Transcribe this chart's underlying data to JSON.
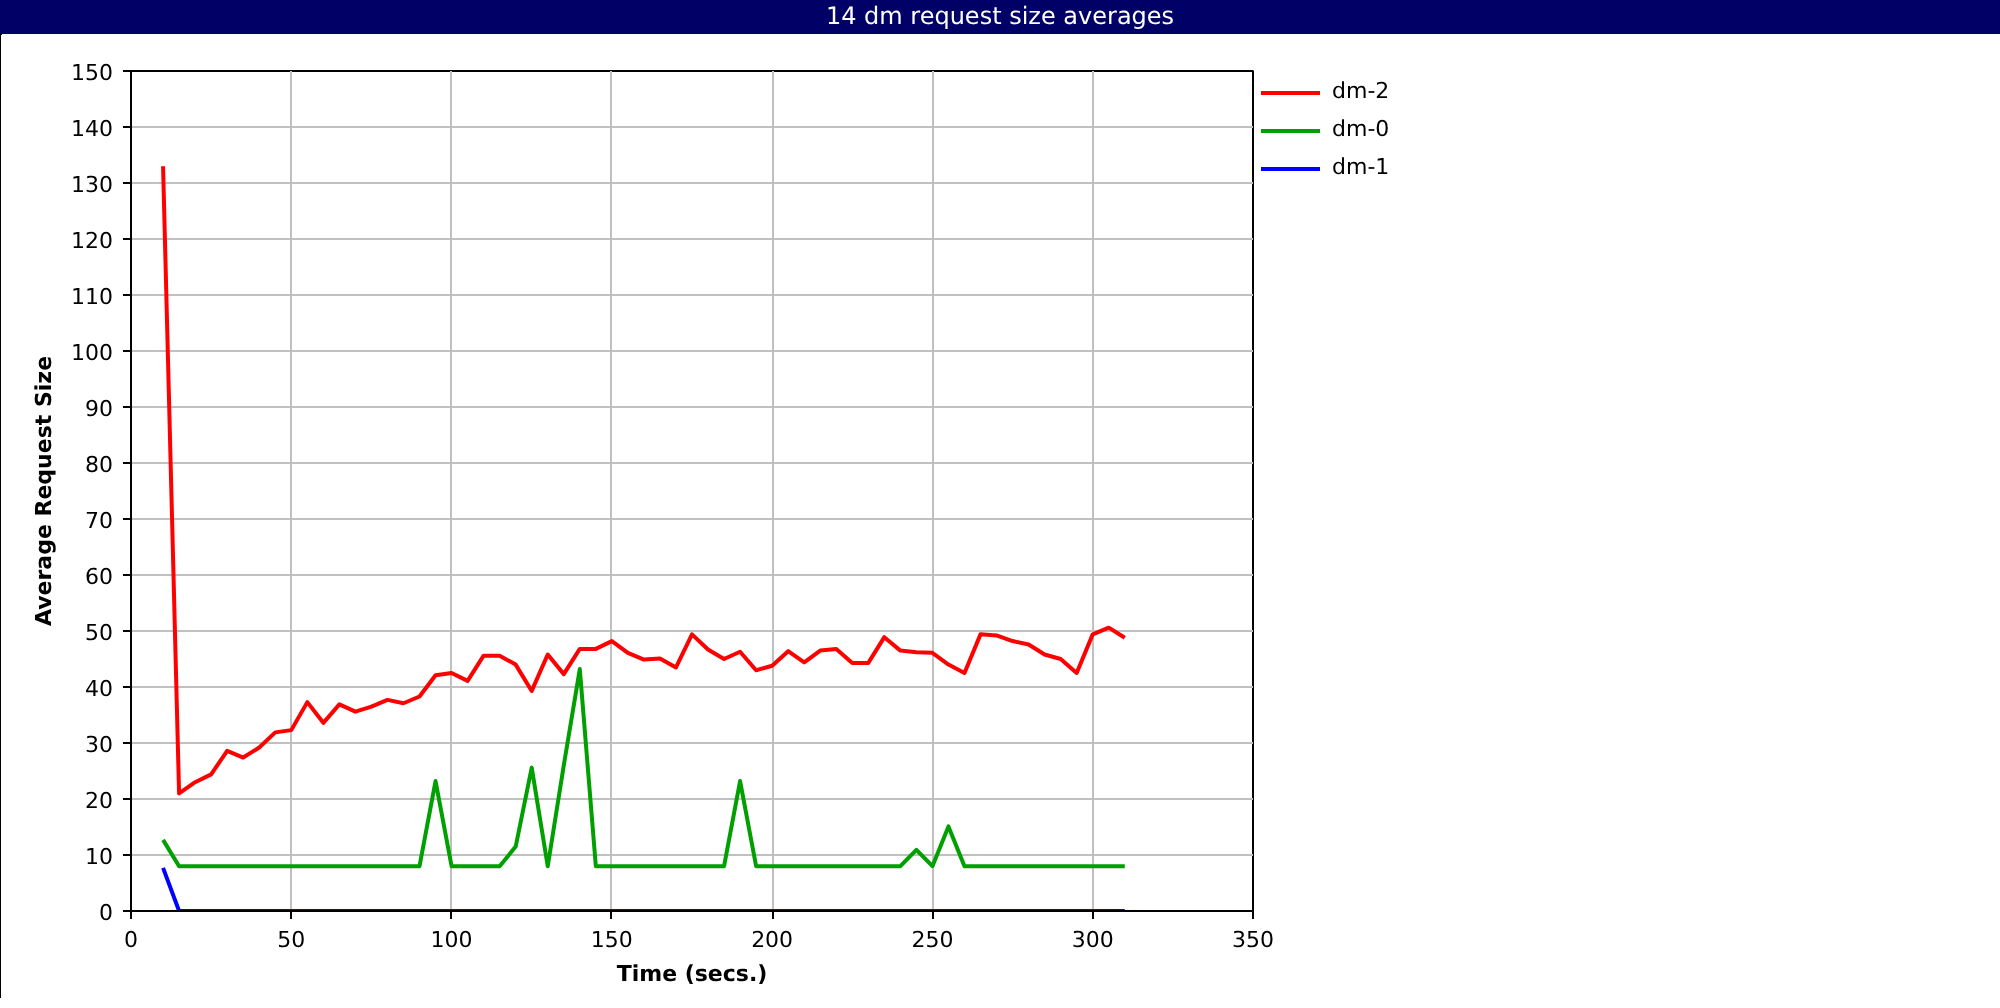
{
  "chart_data": {
    "type": "line",
    "title": "14 dm request size averages",
    "xlabel": "Time (secs.)",
    "ylabel": "Average Request Size",
    "x": [
      10,
      15,
      20,
      25,
      30,
      35,
      40,
      45,
      50,
      55,
      60,
      65,
      70,
      75,
      80,
      85,
      90,
      95,
      100,
      105,
      110,
      115,
      120,
      125,
      130,
      135,
      140,
      145,
      150,
      155,
      160,
      165,
      170,
      175,
      180,
      185,
      190,
      195,
      200,
      205,
      210,
      215,
      220,
      225,
      230,
      235,
      240,
      245,
      250,
      255,
      260,
      265,
      270,
      275,
      280,
      285,
      290,
      295,
      300,
      305,
      310
    ],
    "series": [
      {
        "name": "dm-2",
        "color": "#ff0000",
        "values": [
          133,
          21,
          23,
          24.4,
          28.6,
          27.4,
          29.2,
          31.9,
          32.3,
          37.3,
          33.6,
          36.9,
          35.6,
          36.5,
          37.7,
          37.1,
          38.3,
          42.1,
          42.5,
          41.1,
          45.6,
          45.6,
          44.0,
          39.3,
          45.8,
          42.3,
          46.8,
          46.8,
          48.2,
          46.1,
          44.9,
          45.1,
          43.5,
          49.4,
          46.7,
          45.0,
          46.3,
          43.0,
          43.8,
          46.4,
          44.4,
          46.5,
          46.8,
          44.3,
          44.3,
          48.9,
          46.5,
          46.2,
          46.1,
          44.0,
          42.5,
          49.4,
          49.2,
          48.2,
          47.6,
          45.8,
          45.0,
          42.5,
          49.4,
          50.6,
          48.8
        ]
      },
      {
        "name": "dm-0",
        "color": "#00a000",
        "values": [
          12.7,
          8,
          8,
          8,
          8,
          8,
          8,
          8,
          8,
          8,
          8,
          8,
          8,
          8,
          8,
          8,
          8,
          23.2,
          8,
          8,
          8,
          8,
          11.5,
          25.6,
          8,
          26,
          43.2,
          8,
          8,
          8,
          8,
          8,
          8,
          8,
          8,
          8,
          23.2,
          8,
          8,
          8,
          8,
          8,
          8,
          8,
          8,
          8,
          8,
          10.9,
          8,
          15.1,
          8,
          8,
          8,
          8,
          8,
          8,
          8,
          8,
          8,
          8,
          8
        ]
      },
      {
        "name": "dm-1",
        "color": "#0000ff",
        "values": [
          7.7,
          0,
          0,
          0,
          0,
          0,
          0,
          0,
          0,
          0,
          0,
          0,
          0,
          0,
          0,
          0,
          0,
          0,
          0,
          0,
          0,
          0,
          0,
          0,
          0,
          0,
          0,
          0,
          0,
          0,
          0,
          0,
          0,
          0,
          0,
          0,
          0,
          0,
          0,
          0,
          0,
          0,
          0,
          0,
          0,
          0,
          0,
          0,
          0,
          0,
          0,
          0,
          0,
          0,
          0,
          0,
          0,
          0,
          0,
          0,
          0
        ]
      }
    ],
    "xlim": [
      0,
      350
    ],
    "ylim": [
      0,
      150
    ],
    "xticks": [
      0,
      50,
      100,
      150,
      200,
      250,
      300,
      350
    ],
    "yticks": [
      0,
      10,
      20,
      30,
      40,
      50,
      60,
      70,
      80,
      90,
      100,
      110,
      120,
      130,
      140,
      150
    ],
    "grid": true,
    "legend": "top right",
    "line_style": "solid"
  }
}
